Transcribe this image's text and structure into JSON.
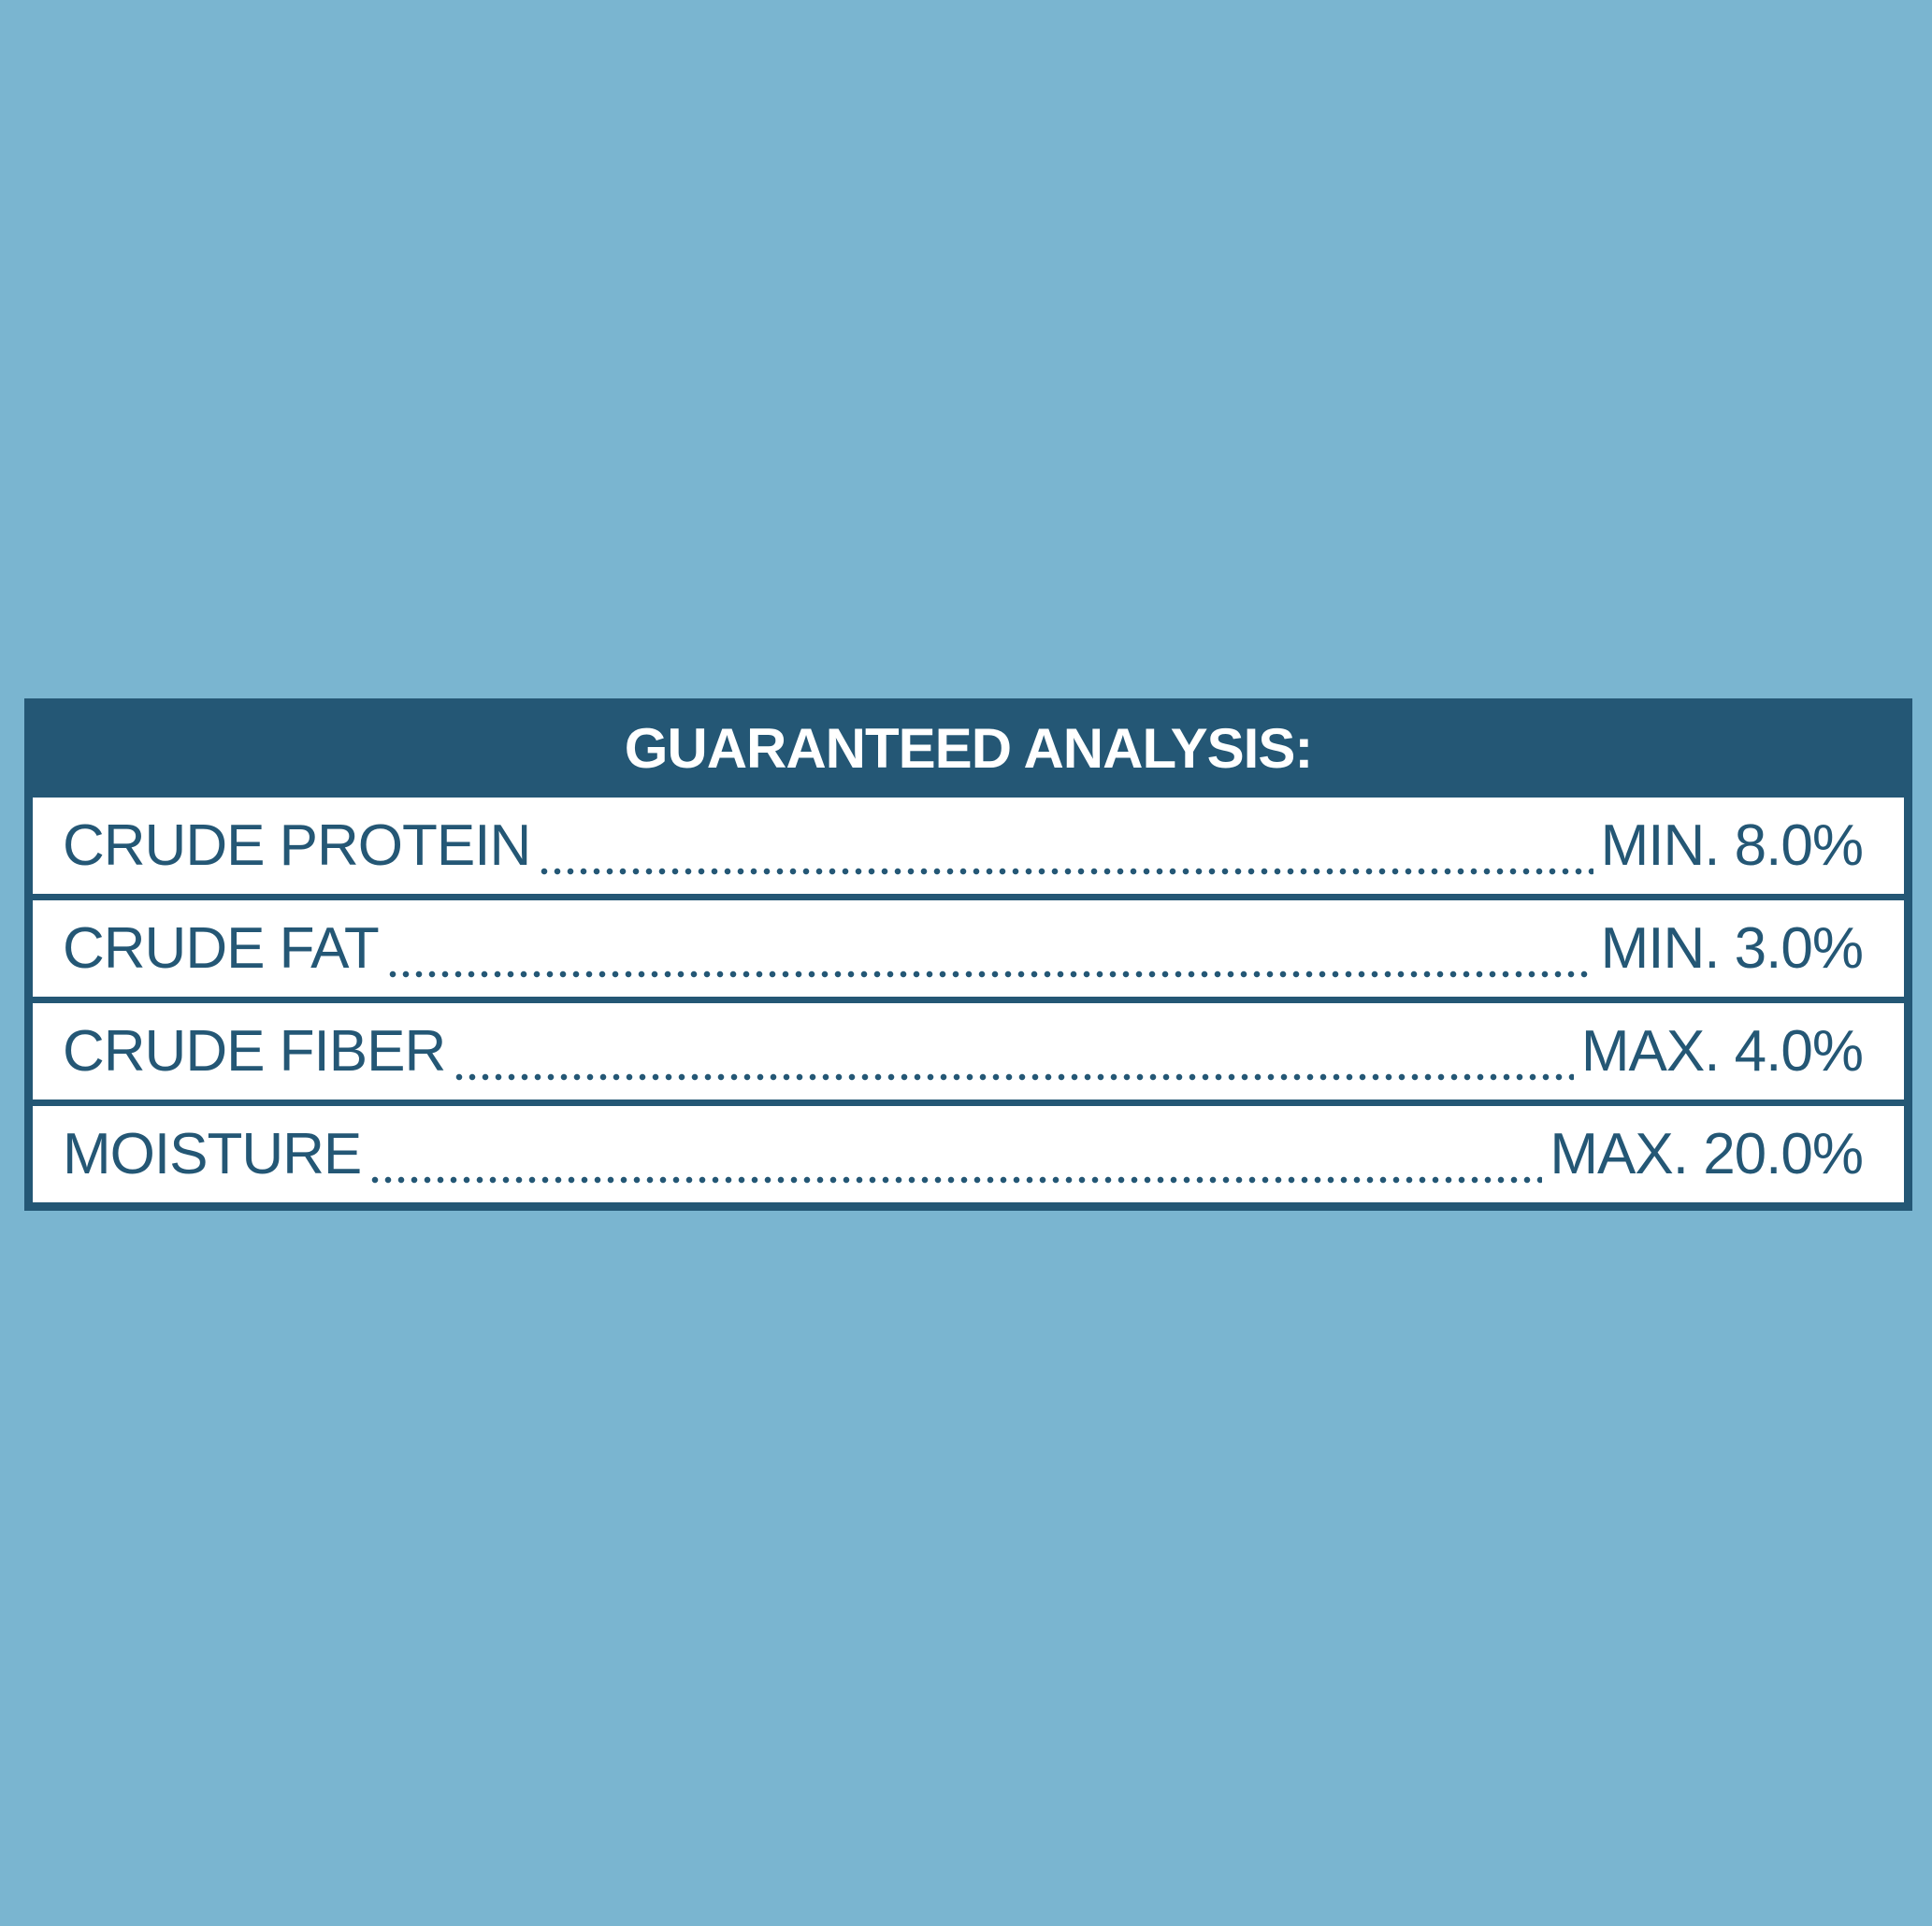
{
  "header": {
    "title": "GUARANTEED ANALYSIS:"
  },
  "table": {
    "rows": [
      {
        "label": "CRUDE PROTEIN",
        "value": "MIN. 8.0%"
      },
      {
        "label": "CRUDE FAT",
        "value": "MIN. 3.0%"
      },
      {
        "label": "CRUDE FIBER",
        "value": "MAX. 4.0%"
      },
      {
        "label": "MOISTURE",
        "value": "MAX. 20.0%"
      }
    ]
  }
}
